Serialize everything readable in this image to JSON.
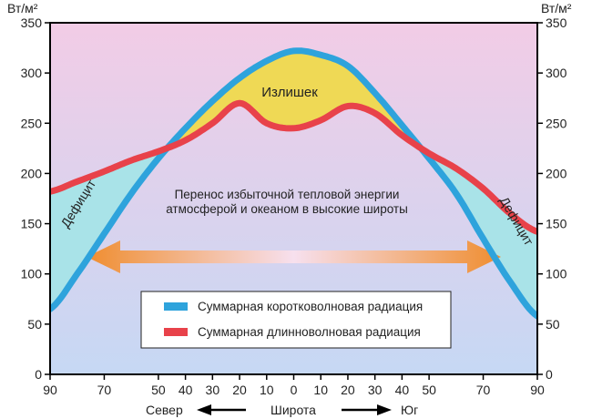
{
  "chart_data": {
    "type": "line",
    "y_unit": "Вт/м²",
    "ylim": [
      0,
      350
    ],
    "yticks": [
      0,
      50,
      100,
      150,
      200,
      250,
      300,
      350
    ],
    "xlim": [
      -90,
      90
    ],
    "xticks": [
      -90,
      -70,
      -50,
      -40,
      -30,
      -20,
      -10,
      0,
      10,
      20,
      30,
      40,
      50,
      70,
      90
    ],
    "xtick_labels": [
      "90",
      "70",
      "50",
      "40",
      "30",
      "20",
      "10",
      "0",
      "10",
      "20",
      "30",
      "40",
      "50",
      "70",
      "90"
    ],
    "x_axis_words": {
      "north": "Север",
      "center": "Широта",
      "south": "Юг"
    },
    "series": [
      {
        "name": "Суммарная коротковолновая радиация",
        "color": "#2ea3dc",
        "x": [
          -90,
          -80,
          -70,
          -60,
          -50,
          -40,
          -30,
          -20,
          -10,
          0,
          10,
          20,
          30,
          40,
          50,
          60,
          70,
          80,
          90
        ],
        "values": [
          65,
          100,
          140,
          180,
          215,
          245,
          272,
          295,
          312,
          322,
          318,
          307,
          280,
          248,
          215,
          180,
          135,
          92,
          58
        ]
      },
      {
        "name": "Суммарная длинноволновая радиация",
        "color": "#e8424a",
        "x": [
          -90,
          -80,
          -70,
          -60,
          -50,
          -40,
          -30,
          -20,
          -10,
          0,
          10,
          20,
          30,
          40,
          50,
          60,
          70,
          80,
          90
        ],
        "values": [
          182,
          192,
          202,
          213,
          222,
          233,
          250,
          270,
          250,
          245,
          253,
          267,
          260,
          238,
          220,
          205,
          185,
          160,
          142
        ]
      }
    ],
    "annotations": {
      "surplus": "Излишек",
      "deficit_left": "Дефицит",
      "deficit_right": "Дефицит",
      "transport_line1": "Перенос избыточной тепловой энергии",
      "transport_line2": "атмосферой и океаном в высокие широты"
    },
    "legend_position": "bottom-center",
    "colors": {
      "background_top": "#f2cce6",
      "background_bottom": "#c6d8f4",
      "surplus_fill": "#efd955",
      "deficit_fill": "#a9e3e8",
      "arrow_center": "#f7e0ee",
      "arrow_end": "#ef8d2f"
    }
  }
}
